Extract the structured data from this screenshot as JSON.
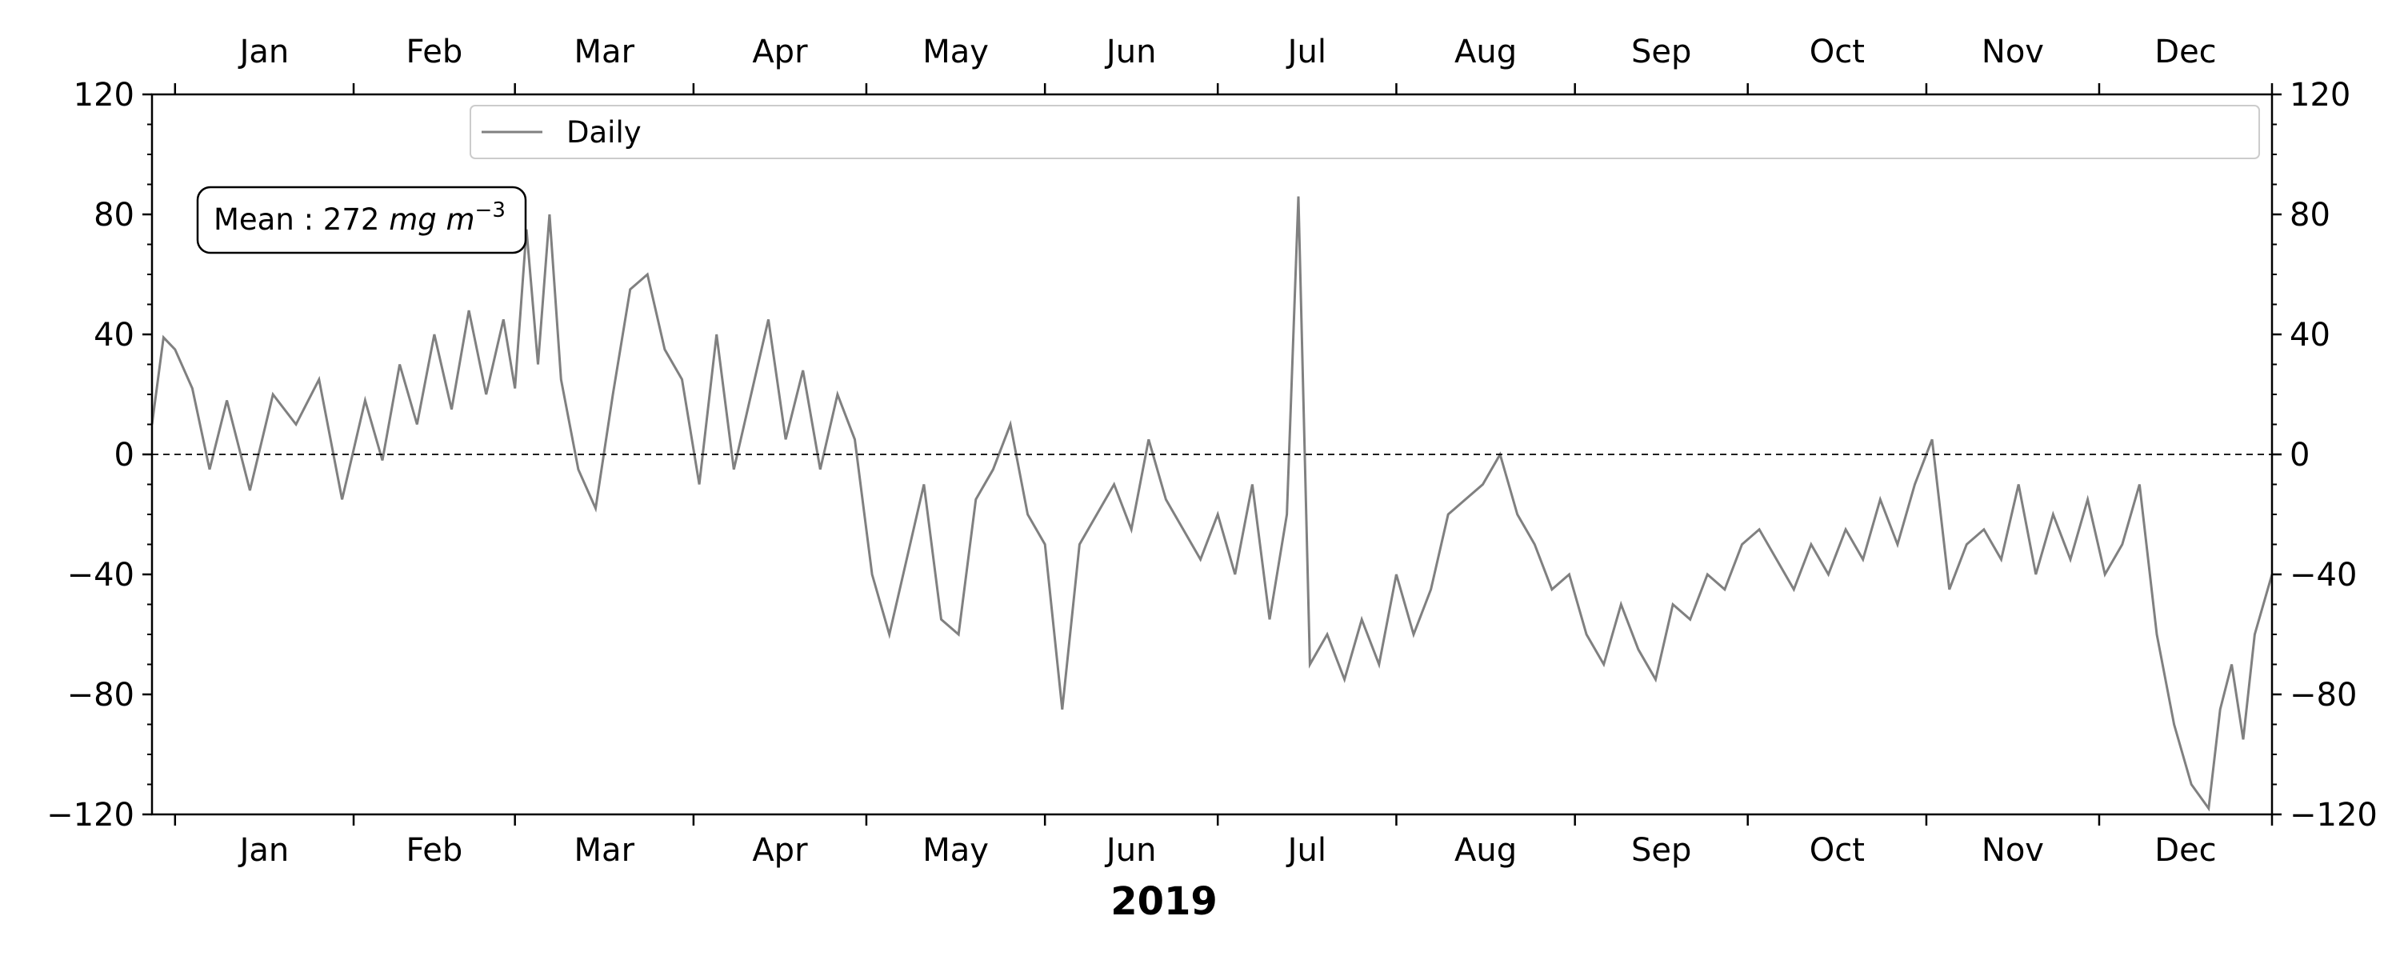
{
  "chart_data": {
    "type": "line",
    "xlabel": "2019",
    "ylabel": "",
    "ylim": [
      -120,
      120
    ],
    "yticks": [
      -120,
      -80,
      -40,
      0,
      40,
      80,
      120
    ],
    "xlim": [
      "2018-12-28",
      "2019-12-31"
    ],
    "month_ticks": [
      "2019-01-01",
      "2019-02-01",
      "2019-03-01",
      "2019-04-01",
      "2019-05-01",
      "2019-06-01",
      "2019-07-01",
      "2019-08-01",
      "2019-09-01",
      "2019-10-01",
      "2019-11-01",
      "2019-12-01"
    ],
    "month_labels": [
      "Jan",
      "Feb",
      "Mar",
      "Apr",
      "May",
      "Jun",
      "Jul",
      "Aug",
      "Sep",
      "Oct",
      "Nov",
      "Dec"
    ],
    "top_axis_labels": true,
    "right_axis_labels": true,
    "zero_line": "dashed",
    "grid": false,
    "legend_position": "top",
    "annotation": {
      "prefix": "Mean : 272 ",
      "unit": "mg m",
      "exponent": "−3"
    },
    "series": [
      {
        "name": "Daily",
        "color": "#808080",
        "kind": "daily",
        "points": [
          [
            "2018-12-28",
            10
          ],
          [
            "2018-12-30",
            39
          ],
          [
            "2019-01-01",
            35
          ],
          [
            "2019-01-04",
            22
          ],
          [
            "2019-01-07",
            -5
          ],
          [
            "2019-01-10",
            18
          ],
          [
            "2019-01-14",
            -12
          ],
          [
            "2019-01-18",
            20
          ],
          [
            "2019-01-22",
            10
          ],
          [
            "2019-01-26",
            25
          ],
          [
            "2019-01-30",
            -15
          ],
          [
            "2019-02-03",
            18
          ],
          [
            "2019-02-06",
            -2
          ],
          [
            "2019-02-09",
            30
          ],
          [
            "2019-02-12",
            10
          ],
          [
            "2019-02-15",
            40
          ],
          [
            "2019-02-18",
            15
          ],
          [
            "2019-02-21",
            48
          ],
          [
            "2019-02-24",
            20
          ],
          [
            "2019-02-27",
            45
          ],
          [
            "2019-03-01",
            22
          ],
          [
            "2019-03-03",
            75
          ],
          [
            "2019-03-05",
            30
          ],
          [
            "2019-03-07",
            80
          ],
          [
            "2019-03-09",
            25
          ],
          [
            "2019-03-12",
            -5
          ],
          [
            "2019-03-15",
            -18
          ],
          [
            "2019-03-18",
            20
          ],
          [
            "2019-03-21",
            55
          ],
          [
            "2019-03-24",
            60
          ],
          [
            "2019-03-27",
            35
          ],
          [
            "2019-03-30",
            25
          ],
          [
            "2019-04-02",
            -10
          ],
          [
            "2019-04-05",
            40
          ],
          [
            "2019-04-08",
            -5
          ],
          [
            "2019-04-11",
            20
          ],
          [
            "2019-04-14",
            45
          ],
          [
            "2019-04-17",
            5
          ],
          [
            "2019-04-20",
            28
          ],
          [
            "2019-04-23",
            -5
          ],
          [
            "2019-04-26",
            20
          ],
          [
            "2019-04-29",
            5
          ],
          [
            "2019-05-02",
            -40
          ],
          [
            "2019-05-05",
            -60
          ],
          [
            "2019-05-08",
            -35
          ],
          [
            "2019-05-11",
            -10
          ],
          [
            "2019-05-14",
            -55
          ],
          [
            "2019-05-17",
            -60
          ],
          [
            "2019-05-20",
            -15
          ],
          [
            "2019-05-23",
            -5
          ],
          [
            "2019-05-26",
            10
          ],
          [
            "2019-05-29",
            -20
          ],
          [
            "2019-06-01",
            -30
          ],
          [
            "2019-06-04",
            -85
          ],
          [
            "2019-06-07",
            -30
          ],
          [
            "2019-06-10",
            -20
          ],
          [
            "2019-06-13",
            -10
          ],
          [
            "2019-06-16",
            -25
          ],
          [
            "2019-06-19",
            5
          ],
          [
            "2019-06-22",
            -15
          ],
          [
            "2019-06-25",
            -25
          ],
          [
            "2019-06-28",
            -35
          ],
          [
            "2019-07-01",
            -20
          ],
          [
            "2019-07-04",
            -40
          ],
          [
            "2019-07-07",
            -10
          ],
          [
            "2019-07-10",
            -55
          ],
          [
            "2019-07-13",
            -20
          ],
          [
            "2019-07-15",
            86
          ],
          [
            "2019-07-17",
            -70
          ],
          [
            "2019-07-20",
            -60
          ],
          [
            "2019-07-23",
            -75
          ],
          [
            "2019-07-26",
            -55
          ],
          [
            "2019-07-29",
            -70
          ],
          [
            "2019-08-01",
            -40
          ],
          [
            "2019-08-04",
            -60
          ],
          [
            "2019-08-07",
            -45
          ],
          [
            "2019-08-10",
            -20
          ],
          [
            "2019-08-13",
            -15
          ],
          [
            "2019-08-16",
            -10
          ],
          [
            "2019-08-19",
            0
          ],
          [
            "2019-08-22",
            -20
          ],
          [
            "2019-08-25",
            -30
          ],
          [
            "2019-08-28",
            -45
          ],
          [
            "2019-08-31",
            -40
          ],
          [
            "2019-09-03",
            -60
          ],
          [
            "2019-09-06",
            -70
          ],
          [
            "2019-09-09",
            -50
          ],
          [
            "2019-09-12",
            -65
          ],
          [
            "2019-09-15",
            -75
          ],
          [
            "2019-09-18",
            -50
          ],
          [
            "2019-09-21",
            -55
          ],
          [
            "2019-09-24",
            -40
          ],
          [
            "2019-09-27",
            -45
          ],
          [
            "2019-09-30",
            -30
          ],
          [
            "2019-10-03",
            -25
          ],
          [
            "2019-10-06",
            -35
          ],
          [
            "2019-10-09",
            -45
          ],
          [
            "2019-10-12",
            -30
          ],
          [
            "2019-10-15",
            -40
          ],
          [
            "2019-10-18",
            -25
          ],
          [
            "2019-10-21",
            -35
          ],
          [
            "2019-10-24",
            -15
          ],
          [
            "2019-10-27",
            -30
          ],
          [
            "2019-10-30",
            -10
          ],
          [
            "2019-11-02",
            5
          ],
          [
            "2019-11-05",
            -45
          ],
          [
            "2019-11-08",
            -30
          ],
          [
            "2019-11-11",
            -25
          ],
          [
            "2019-11-14",
            -35
          ],
          [
            "2019-11-17",
            -10
          ],
          [
            "2019-11-20",
            -40
          ],
          [
            "2019-11-23",
            -20
          ],
          [
            "2019-11-26",
            -35
          ],
          [
            "2019-11-29",
            -15
          ],
          [
            "2019-12-02",
            -40
          ],
          [
            "2019-12-05",
            -30
          ],
          [
            "2019-12-08",
            -10
          ],
          [
            "2019-12-11",
            -60
          ],
          [
            "2019-12-14",
            -90
          ],
          [
            "2019-12-17",
            -110
          ],
          [
            "2019-12-20",
            -118
          ],
          [
            "2019-12-22",
            -85
          ],
          [
            "2019-12-24",
            -70
          ],
          [
            "2019-12-26",
            -95
          ],
          [
            "2019-12-28",
            -60
          ],
          [
            "2019-12-31",
            -40
          ]
        ]
      }
    ]
  }
}
